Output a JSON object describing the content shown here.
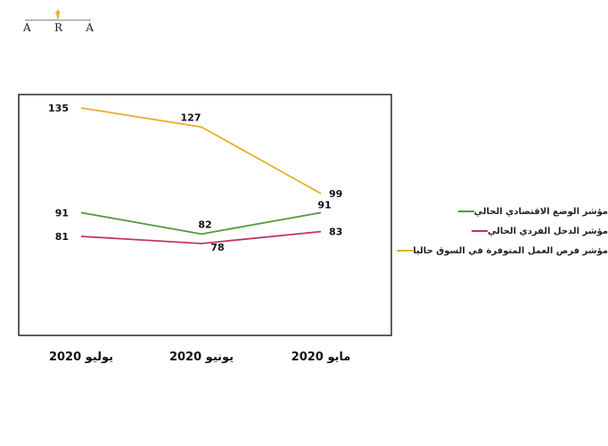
{
  "brand": {
    "letters": [
      "A",
      "R",
      "A"
    ]
  },
  "chart_data": {
    "type": "line",
    "categories": [
      "يوليو 2020",
      "يونيو 2020",
      "مايو 2020"
    ],
    "ylim": [
      0,
      150
    ],
    "grid": false,
    "legend_position": "right",
    "series": [
      {
        "name": "مؤشر الوضع الاقتصادي الحالي",
        "values": [
          91,
          82,
          91
        ],
        "color": "#4f9a3a"
      },
      {
        "name": "مؤشر الدخل الفردي الحالي",
        "values": [
          81,
          78,
          83
        ],
        "color": "#c3326d"
      },
      {
        "name": "مؤشر فرص العمل المتوفرة في السوق حاليا",
        "values": [
          135,
          127,
          99
        ],
        "color": "#e6b02a"
      }
    ]
  }
}
